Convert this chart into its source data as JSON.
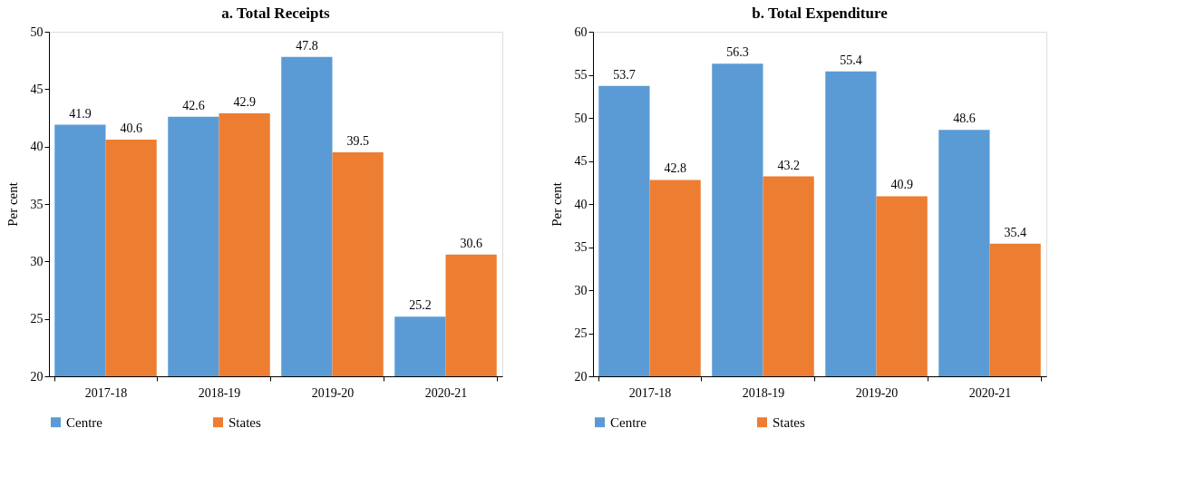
{
  "chart_data": [
    {
      "type": "bar",
      "title": "a. Total Receipts",
      "ylabel": "Per cent",
      "categories": [
        "2017-18",
        "2018-19",
        "2019-20",
        "2020-21"
      ],
      "series": [
        {
          "name": "Centre",
          "color": "#5b9bd5",
          "values": [
            41.9,
            42.6,
            47.8,
            25.2
          ]
        },
        {
          "name": "States",
          "color": "#ed7d31",
          "values": [
            40.6,
            42.9,
            39.5,
            30.6
          ]
        }
      ],
      "ylim": [
        20,
        50
      ],
      "yticks": [
        20,
        25,
        30,
        35,
        40,
        45,
        50
      ],
      "data_labels": true,
      "legend": "bottom",
      "grid": false
    },
    {
      "type": "bar",
      "title": "b. Total Expenditure",
      "ylabel": "Per cent",
      "categories": [
        "2017-18",
        "2018-19",
        "2019-20",
        "2020-21"
      ],
      "series": [
        {
          "name": "Centre",
          "color": "#5b9bd5",
          "values": [
            53.7,
            56.3,
            55.4,
            48.6
          ]
        },
        {
          "name": "States",
          "color": "#ed7d31",
          "values": [
            42.8,
            43.2,
            40.9,
            35.4
          ]
        }
      ],
      "ylim": [
        20,
        60
      ],
      "yticks": [
        20,
        25,
        30,
        35,
        40,
        45,
        50,
        55,
        60
      ],
      "data_labels": true,
      "legend": "bottom",
      "grid": false
    }
  ]
}
